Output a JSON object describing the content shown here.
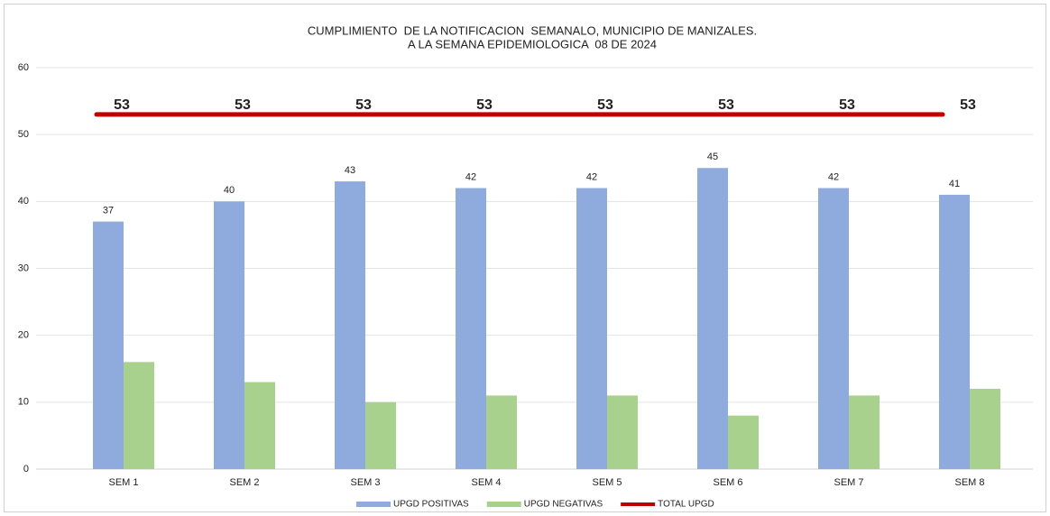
{
  "chart_data": {
    "type": "bar-line",
    "title": "CUMPLIMIENTO  DE LA NOTIFICACION  SEMANALO, MUNICIPIO DE MANIZALES.",
    "subtitle": "A LA SEMANA EPIDEMIOLOGICA  08 DE 2024",
    "categories": [
      "SEM 1",
      "SEM 2",
      "SEM 3",
      "SEM 4",
      "SEM 5",
      "SEM 6",
      "SEM 7",
      "SEM 8"
    ],
    "series": [
      {
        "name": "UPGD POSITIVAS",
        "type": "bar",
        "color": "#8faadc",
        "data_labels": true,
        "values": [
          37,
          40,
          43,
          42,
          42,
          45,
          42,
          41
        ]
      },
      {
        "name": "UPGD NEGATIVAS",
        "type": "bar",
        "color": "#a9d18e",
        "data_labels": false,
        "values": [
          16,
          13,
          10,
          11,
          11,
          8,
          11,
          12
        ]
      },
      {
        "name": "TOTAL UPGD",
        "type": "line",
        "color": "#c00000",
        "data_labels": true,
        "values": [
          53,
          53,
          53,
          53,
          53,
          53,
          53,
          53
        ]
      }
    ],
    "ylim": [
      0,
      60
    ],
    "yticks": [
      0,
      10,
      20,
      30,
      40,
      50,
      60
    ],
    "grid": true,
    "legend": "bottom"
  }
}
